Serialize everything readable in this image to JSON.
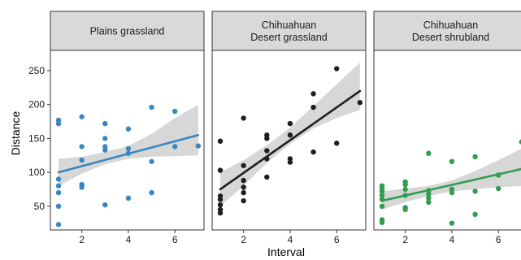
{
  "chart_data": {
    "type": "scatter",
    "xlabel": "Interval",
    "ylabel": "Distance",
    "xlim": [
      0.65,
      7.25
    ],
    "ylim": [
      15,
      280
    ],
    "x_ticks": [
      2,
      4,
      6
    ],
    "y_ticks": [
      50,
      100,
      150,
      200,
      250
    ],
    "grid": false,
    "panels": [
      {
        "title_lines": [
          "Plains grassland"
        ],
        "color": "#3a87c0",
        "fit": {
          "x0": 1,
          "y0": 100,
          "x1": 7,
          "y1": 155
        },
        "band": [
          [
            1,
            80,
            120
          ],
          [
            2,
            98,
            123
          ],
          [
            3,
            112,
            130
          ],
          [
            4,
            120,
            139
          ],
          [
            5,
            123,
            157
          ],
          [
            6,
            124,
            180
          ],
          [
            7,
            125,
            200
          ]
        ],
        "points": [
          [
            1,
            177
          ],
          [
            1,
            172
          ],
          [
            1,
            90
          ],
          [
            1,
            80
          ],
          [
            1,
            70
          ],
          [
            1,
            50
          ],
          [
            1,
            23
          ],
          [
            2,
            182
          ],
          [
            2,
            138
          ],
          [
            2,
            118
          ],
          [
            2,
            82
          ],
          [
            2,
            78
          ],
          [
            3,
            172
          ],
          [
            3,
            150
          ],
          [
            3,
            138
          ],
          [
            3,
            133
          ],
          [
            3,
            52
          ],
          [
            4,
            164
          ],
          [
            4,
            135
          ],
          [
            4,
            128
          ],
          [
            4,
            62
          ],
          [
            5,
            196
          ],
          [
            5,
            116
          ],
          [
            5,
            70
          ],
          [
            6,
            190
          ],
          [
            6,
            138
          ],
          [
            7,
            139
          ]
        ]
      },
      {
        "title_lines": [
          "Chihuahuan",
          "Desert grassland"
        ],
        "color": "#1f1f1f",
        "fit": {
          "x0": 1,
          "y0": 75,
          "x1": 7,
          "y1": 220
        },
        "band": [
          [
            1,
            50,
            100
          ],
          [
            2,
            80,
            118
          ],
          [
            3,
            114,
            140
          ],
          [
            4,
            142,
            166
          ],
          [
            5,
            165,
            198
          ],
          [
            6,
            180,
            230
          ],
          [
            7,
            192,
            262
          ]
        ],
        "points": [
          [
            1,
            146
          ],
          [
            1,
            103
          ],
          [
            1,
            65
          ],
          [
            1,
            60
          ],
          [
            1,
            52
          ],
          [
            1,
            45
          ],
          [
            1,
            40
          ],
          [
            2,
            180
          ],
          [
            2,
            110
          ],
          [
            2,
            88
          ],
          [
            2,
            78
          ],
          [
            2,
            70
          ],
          [
            2,
            58
          ],
          [
            3,
            155
          ],
          [
            3,
            150
          ],
          [
            3,
            132
          ],
          [
            3,
            120
          ],
          [
            3,
            93
          ],
          [
            4,
            172
          ],
          [
            4,
            155
          ],
          [
            4,
            120
          ],
          [
            4,
            115
          ],
          [
            5,
            216
          ],
          [
            5,
            196
          ],
          [
            5,
            130
          ],
          [
            6,
            253
          ],
          [
            6,
            143
          ],
          [
            7,
            203
          ]
        ]
      },
      {
        "title_lines": [
          "Chihuahuan",
          "Desert shrubland"
        ],
        "color": "#2f9e4f",
        "fit": {
          "x0": 1,
          "y0": 58,
          "x1": 7,
          "y1": 105
        },
        "band": [
          [
            1,
            45,
            72
          ],
          [
            2,
            56,
            76
          ],
          [
            3,
            65,
            80
          ],
          [
            4,
            72,
            88
          ],
          [
            5,
            75,
            102
          ],
          [
            6,
            78,
            118
          ],
          [
            7,
            80,
            135
          ]
        ],
        "points": [
          [
            1,
            80
          ],
          [
            1,
            76
          ],
          [
            1,
            72
          ],
          [
            1,
            66
          ],
          [
            1,
            60
          ],
          [
            1,
            50
          ],
          [
            1,
            30
          ],
          [
            1,
            26
          ],
          [
            2,
            86
          ],
          [
            2,
            82
          ],
          [
            2,
            75
          ],
          [
            2,
            66
          ],
          [
            2,
            48
          ],
          [
            2,
            45
          ],
          [
            3,
            128
          ],
          [
            3,
            73
          ],
          [
            3,
            68
          ],
          [
            3,
            62
          ],
          [
            3,
            56
          ],
          [
            4,
            116
          ],
          [
            4,
            75
          ],
          [
            4,
            70
          ],
          [
            4,
            25
          ],
          [
            5,
            123
          ],
          [
            5,
            72
          ],
          [
            5,
            38
          ],
          [
            6,
            96
          ],
          [
            6,
            76
          ],
          [
            7,
            145
          ]
        ]
      }
    ]
  }
}
